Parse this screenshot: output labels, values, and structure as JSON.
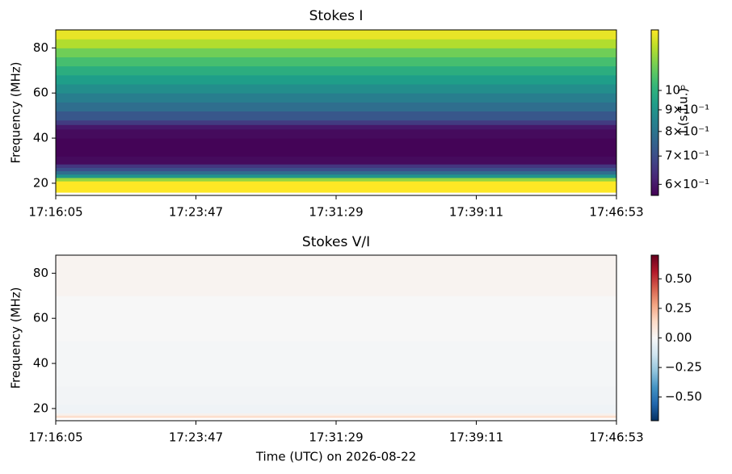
{
  "chart_data": [
    {
      "type": "heatmap",
      "title": "Stokes I",
      "ylabel": "Frequency (MHz)",
      "xticks": [
        "17:16:05",
        "17:23:47",
        "17:31:29",
        "17:39:11",
        "17:46:53"
      ],
      "ylim": [
        14.6,
        88
      ],
      "yticks": [
        20,
        40,
        60,
        80
      ],
      "y_edges": [
        14.6,
        16,
        18,
        21,
        22.5,
        24,
        25.5,
        27,
        28.5,
        32,
        40,
        44,
        46,
        48,
        52,
        56,
        60,
        64,
        68,
        72,
        76,
        80,
        84,
        88
      ],
      "values": [
        null,
        1.39,
        1.39,
        1.2,
        0.9,
        0.78,
        0.7,
        0.65,
        0.58,
        0.57,
        0.58,
        0.6,
        0.66,
        0.72,
        0.78,
        0.83,
        0.88,
        0.93,
        0.99,
        1.06,
        1.14,
        1.25,
        1.35
      ],
      "colormap": "viridis",
      "color_scale": "log",
      "clim": [
        0.565,
        1.39
      ],
      "colorbar_label": "I (s.f.u.)",
      "colorbar_ticks": [
        {
          "value": 1,
          "label": "10⁰"
        },
        {
          "value": 0.9,
          "label": "9×10⁻¹"
        },
        {
          "value": 0.8,
          "label": "8×10⁻¹"
        },
        {
          "value": 0.7,
          "label": "7×10⁻¹"
        },
        {
          "value": 0.6,
          "label": "6×10⁻¹"
        }
      ]
    },
    {
      "type": "heatmap",
      "title": "Stokes V/I",
      "ylabel": "Frequency (MHz)",
      "xlabel": "Time (UTC) on 2026-08-22",
      "xticks": [
        "17:16:05",
        "17:23:47",
        "17:31:29",
        "17:39:11",
        "17:46:53"
      ],
      "ylim": [
        14.6,
        88
      ],
      "yticks": [
        20,
        40,
        60,
        80
      ],
      "y_edges": [
        14.6,
        16,
        17,
        18,
        22,
        30,
        50,
        70,
        88
      ],
      "values": [
        null,
        0.12,
        0.03,
        -0.03,
        -0.02,
        -0.01,
        0.0,
        0.02
      ],
      "colormap": "RdBu_r",
      "color_scale": "linear",
      "clim": [
        -0.7,
        0.7
      ],
      "colorbar_ticks": [
        {
          "value": 0.5,
          "label": "0.50"
        },
        {
          "value": 0.25,
          "label": "0.25"
        },
        {
          "value": 0,
          "label": "0.00"
        },
        {
          "value": -0.25,
          "label": "−0.25"
        },
        {
          "value": -0.5,
          "label": "−0.50"
        }
      ]
    }
  ]
}
